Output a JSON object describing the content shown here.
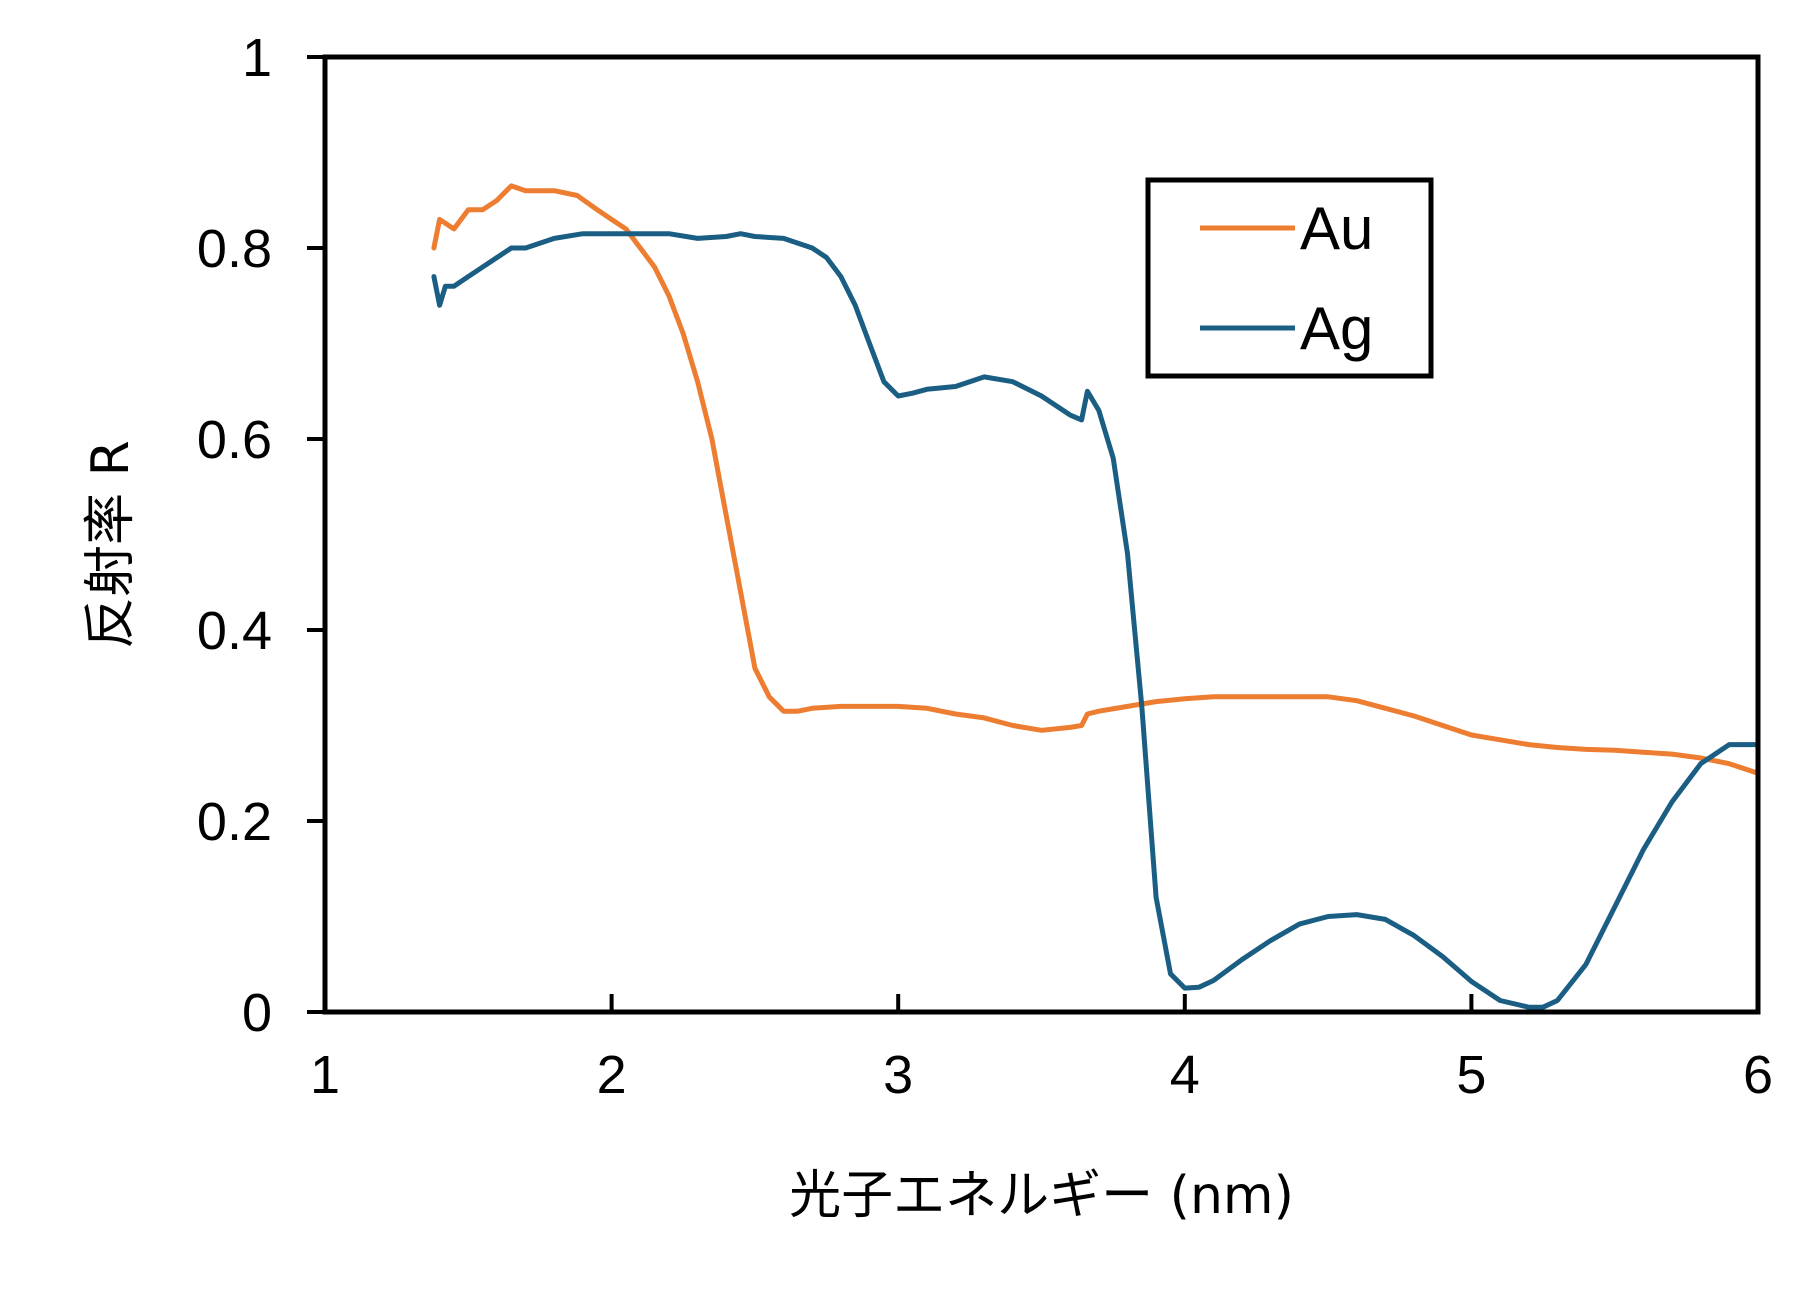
{
  "chart_data": {
    "type": "line",
    "xlabel": "光子エネルギー (nm)",
    "ylabel": "反射率 R",
    "xlim": [
      1,
      6
    ],
    "ylim": [
      0,
      1
    ],
    "xticks": [
      "1",
      "2",
      "3",
      "4",
      "5",
      "6"
    ],
    "yticks": [
      "0",
      "0.2",
      "0.4",
      "0.6",
      "0.8",
      "1"
    ],
    "grid": false,
    "legend_position": "top-right",
    "series": [
      {
        "name": "Au",
        "color": "#ED7D31",
        "x": [
          1.38,
          1.4,
          1.45,
          1.5,
          1.55,
          1.6,
          1.65,
          1.7,
          1.8,
          1.88,
          1.95,
          2.0,
          2.05,
          2.1,
          2.15,
          2.2,
          2.25,
          2.3,
          2.35,
          2.4,
          2.45,
          2.5,
          2.55,
          2.6,
          2.65,
          2.7,
          2.8,
          2.9,
          3.0,
          3.1,
          3.2,
          3.3,
          3.4,
          3.5,
          3.6,
          3.64,
          3.66,
          3.7,
          3.8,
          3.9,
          4.0,
          4.1,
          4.2,
          4.3,
          4.4,
          4.5,
          4.6,
          4.7,
          4.8,
          4.9,
          5.0,
          5.1,
          5.2,
          5.3,
          5.4,
          5.5,
          5.6,
          5.7,
          5.8,
          5.9,
          6.0
        ],
        "y": [
          0.8,
          0.83,
          0.82,
          0.84,
          0.84,
          0.85,
          0.865,
          0.86,
          0.86,
          0.855,
          0.84,
          0.83,
          0.82,
          0.8,
          0.78,
          0.75,
          0.71,
          0.66,
          0.6,
          0.52,
          0.44,
          0.36,
          0.33,
          0.315,
          0.315,
          0.318,
          0.32,
          0.32,
          0.32,
          0.318,
          0.312,
          0.308,
          0.3,
          0.295,
          0.298,
          0.3,
          0.312,
          0.315,
          0.32,
          0.325,
          0.328,
          0.33,
          0.33,
          0.33,
          0.33,
          0.33,
          0.326,
          0.318,
          0.31,
          0.3,
          0.29,
          0.285,
          0.28,
          0.277,
          0.275,
          0.274,
          0.272,
          0.27,
          0.266,
          0.26,
          0.25
        ]
      },
      {
        "name": "Ag",
        "color": "#1B5E84",
        "x": [
          1.38,
          1.4,
          1.42,
          1.45,
          1.5,
          1.55,
          1.6,
          1.65,
          1.7,
          1.8,
          1.9,
          2.0,
          2.1,
          2.2,
          2.3,
          2.4,
          2.45,
          2.5,
          2.6,
          2.7,
          2.75,
          2.8,
          2.85,
          2.9,
          2.95,
          3.0,
          3.05,
          3.1,
          3.2,
          3.3,
          3.4,
          3.5,
          3.6,
          3.64,
          3.66,
          3.7,
          3.75,
          3.8,
          3.85,
          3.9,
          3.95,
          4.0,
          4.05,
          4.1,
          4.2,
          4.3,
          4.4,
          4.5,
          4.6,
          4.7,
          4.8,
          4.9,
          5.0,
          5.1,
          5.2,
          5.25,
          5.3,
          5.4,
          5.5,
          5.6,
          5.7,
          5.8,
          5.9,
          6.0
        ],
        "y": [
          0.77,
          0.74,
          0.76,
          0.76,
          0.77,
          0.78,
          0.79,
          0.8,
          0.8,
          0.81,
          0.815,
          0.815,
          0.815,
          0.815,
          0.81,
          0.812,
          0.815,
          0.812,
          0.81,
          0.8,
          0.79,
          0.77,
          0.74,
          0.7,
          0.66,
          0.645,
          0.648,
          0.652,
          0.655,
          0.665,
          0.66,
          0.645,
          0.625,
          0.62,
          0.65,
          0.63,
          0.58,
          0.48,
          0.32,
          0.12,
          0.04,
          0.025,
          0.026,
          0.033,
          0.055,
          0.075,
          0.092,
          0.1,
          0.102,
          0.097,
          0.08,
          0.058,
          0.032,
          0.012,
          0.005,
          0.005,
          0.012,
          0.05,
          0.11,
          0.17,
          0.22,
          0.26,
          0.28,
          0.28
        ]
      }
    ]
  }
}
